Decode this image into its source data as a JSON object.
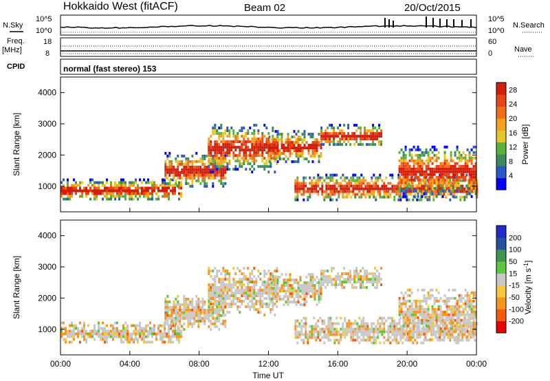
{
  "header": {
    "station": "Hokkaido West (fitACF)",
    "beam": "Beam 02",
    "date": "20/Oct/2015"
  },
  "top_panel": {
    "nsky_label": "N.Sky",
    "nsearch_label": "N.Search",
    "left_ticks": [
      "10^5",
      "10^0"
    ],
    "right_ticks": [
      "10^5",
      "10^0"
    ],
    "freq_label_1": "Freq.",
    "freq_label_2": "[MHz]",
    "freq_ticks": [
      "18",
      "8"
    ],
    "nave_label": "Nave",
    "nave_ticks": [
      "60",
      "0"
    ],
    "cpid_label": "CPID",
    "cpid_text": "normal (fast stereo) 153"
  },
  "chart_data": [
    {
      "type": "heatmap",
      "parameter": "power",
      "ylabel": "Slant Range [km]",
      "xlabel": "",
      "x_range_hours": [
        0,
        24
      ],
      "ylim": [
        180,
        4500
      ],
      "y_ticks": [
        "1000",
        "2000",
        "3000",
        "4000"
      ],
      "colorbar_label": "Power [dB]",
      "colorbar_ticks": [
        "4",
        "8",
        "12",
        "16",
        "20",
        "24",
        "28"
      ],
      "colorbar_range": [
        0,
        30
      ],
      "colors": [
        "#0000ff",
        "#2d57c8",
        "#3c8c5a",
        "#5ab43c",
        "#e6c828",
        "#f5a01e",
        "#f06e14",
        "#e64614",
        "#d21e0a"
      ],
      "echo_bands": [
        {
          "t_start": 0.0,
          "t_end": 7.0,
          "range_low": 560,
          "range_high": 1250
        },
        {
          "t_start": 6.0,
          "t_end": 9.5,
          "range_low": 1000,
          "range_high": 2100
        },
        {
          "t_start": 8.5,
          "t_end": 12.5,
          "range_low": 1500,
          "range_high": 3000
        },
        {
          "t_start": 12.0,
          "t_end": 15.0,
          "range_low": 1800,
          "range_high": 2800
        },
        {
          "t_start": 15.0,
          "t_end": 18.5,
          "range_low": 2300,
          "range_high": 3000
        },
        {
          "t_start": 13.5,
          "t_end": 24.0,
          "range_low": 550,
          "range_high": 1400
        },
        {
          "t_start": 19.5,
          "t_end": 24.0,
          "range_low": 700,
          "range_high": 2300
        }
      ]
    },
    {
      "type": "heatmap",
      "parameter": "velocity",
      "ylabel": "Slant Range [km]",
      "xlabel": "Time UT",
      "x_range_hours": [
        0,
        24
      ],
      "x_ticks": [
        "00:00",
        "04:00",
        "08:00",
        "12:00",
        "16:00",
        "20:00",
        "00:00"
      ],
      "ylim": [
        180,
        4500
      ],
      "y_ticks": [
        "1000",
        "2000",
        "3000",
        "4000"
      ],
      "colorbar_label": "Velocity [m s^-1]",
      "colorbar_ticks": [
        "200",
        "100",
        "50",
        "15",
        "-15",
        "-50",
        "-100",
        "-200"
      ],
      "colorbar_range": [
        -250,
        250
      ],
      "colors": [
        "#e60000",
        "#f55a0a",
        "#f5961e",
        "#f5c83c",
        "#c8c8c8",
        "#5ac83c",
        "#3c9650",
        "#2850a0",
        "#1e2dc8"
      ],
      "echo_bands": [
        {
          "t_start": 0.0,
          "t_end": 7.0,
          "range_low": 560,
          "range_high": 1250
        },
        {
          "t_start": 6.0,
          "t_end": 9.5,
          "range_low": 1000,
          "range_high": 2100
        },
        {
          "t_start": 8.5,
          "t_end": 12.5,
          "range_low": 1500,
          "range_high": 3000
        },
        {
          "t_start": 12.0,
          "t_end": 15.0,
          "range_low": 1800,
          "range_high": 2800
        },
        {
          "t_start": 15.0,
          "t_end": 18.5,
          "range_low": 2300,
          "range_high": 3000
        },
        {
          "t_start": 13.5,
          "t_end": 24.0,
          "range_low": 550,
          "range_high": 1400
        },
        {
          "t_start": 19.5,
          "t_end": 24.0,
          "range_low": 700,
          "range_high": 2300
        }
      ]
    }
  ]
}
